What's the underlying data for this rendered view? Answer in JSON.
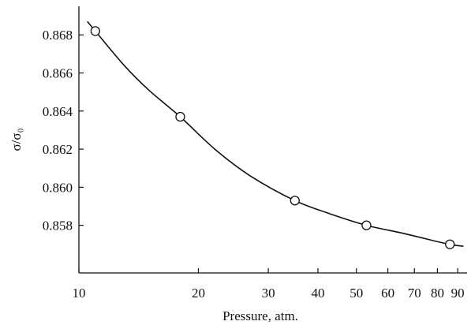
{
  "chart_data": {
    "type": "line",
    "xscale": "log",
    "xlabel": "Pressure, atm.",
    "ylabel": "σ/σ₀",
    "xlim": [
      10,
      95
    ],
    "ylim": [
      0.8555,
      0.8695
    ],
    "grid": false,
    "x_ticks": [
      10,
      20,
      30,
      40,
      50,
      60,
      70,
      80,
      90
    ],
    "x_tick_labels": [
      "10",
      "20",
      "30",
      "40",
      "50",
      "60",
      "70",
      "80",
      "90"
    ],
    "y_ticks": [
      0.858,
      0.86,
      0.862,
      0.864,
      0.866,
      0.868
    ],
    "y_tick_labels": [
      "0.858",
      "0.860",
      "0.862",
      "0.864",
      "0.866",
      "0.868"
    ],
    "series": [
      {
        "markers": "open-circle",
        "x": [
          11.0,
          18.0,
          35.0,
          53.0,
          86.0
        ],
        "y": [
          0.8682,
          0.8637,
          0.8593,
          0.858,
          0.857
        ]
      }
    ],
    "curve": {
      "x": [
        10.5,
        11.0,
        13.0,
        15.0,
        18.0,
        22.0,
        27.0,
        35.0,
        43.0,
        53.0,
        65.0,
        78.0,
        86.0,
        93.0
      ],
      "y": [
        0.8687,
        0.8682,
        0.8664,
        0.8651,
        0.8637,
        0.862,
        0.8606,
        0.8593,
        0.8586,
        0.858,
        0.8576,
        0.8572,
        0.857,
        0.8569
      ]
    }
  }
}
